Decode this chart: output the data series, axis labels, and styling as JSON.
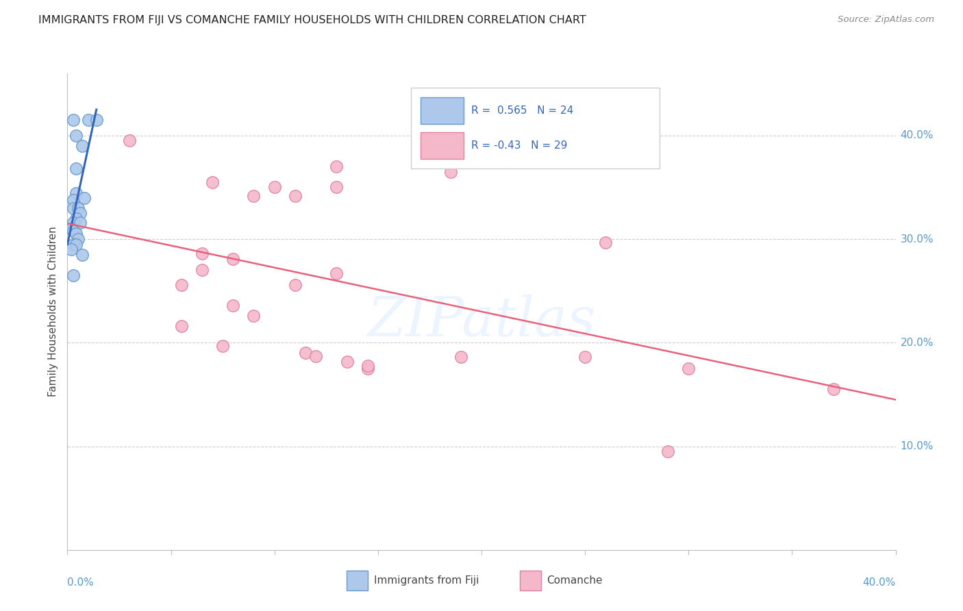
{
  "title": "IMMIGRANTS FROM FIJI VS COMANCHE FAMILY HOUSEHOLDS WITH CHILDREN CORRELATION CHART",
  "source": "Source: ZipAtlas.com",
  "ylabel": "Family Households with Children",
  "xlim": [
    0.0,
    0.4
  ],
  "ylim": [
    0.0,
    0.46
  ],
  "ytick_labels": [
    "10.0%",
    "20.0%",
    "30.0%",
    "40.0%"
  ],
  "ytick_values": [
    0.1,
    0.2,
    0.3,
    0.4
  ],
  "xtick_minor_values": [
    0.0,
    0.05,
    0.1,
    0.15,
    0.2,
    0.25,
    0.3,
    0.35,
    0.4
  ],
  "fiji_R": 0.565,
  "fiji_N": 24,
  "comanche_R": -0.43,
  "comanche_N": 29,
  "fiji_color": "#adc8ea",
  "fiji_edge_color": "#6699cc",
  "fiji_line_color": "#3366bb",
  "comanche_color": "#f5b8cb",
  "comanche_edge_color": "#e080a0",
  "comanche_line_color": "#e8607a",
  "right_axis_color": "#5599cc",
  "watermark": "ZIPatlas",
  "fiji_line_x0": 0.0,
  "fiji_line_y0": 0.295,
  "fiji_line_x1": 0.014,
  "fiji_line_y1": 0.425,
  "comanche_line_x0": 0.0,
  "comanche_line_y0": 0.315,
  "comanche_line_x1": 0.4,
  "comanche_line_y1": 0.145,
  "fiji_points": [
    [
      0.003,
      0.415
    ],
    [
      0.01,
      0.415
    ],
    [
      0.014,
      0.415
    ],
    [
      0.004,
      0.4
    ],
    [
      0.007,
      0.39
    ],
    [
      0.004,
      0.368
    ],
    [
      0.004,
      0.344
    ],
    [
      0.003,
      0.338
    ],
    [
      0.008,
      0.34
    ],
    [
      0.003,
      0.33
    ],
    [
      0.005,
      0.33
    ],
    [
      0.006,
      0.325
    ],
    [
      0.004,
      0.32
    ],
    [
      0.003,
      0.316
    ],
    [
      0.006,
      0.316
    ],
    [
      0.002,
      0.31
    ],
    [
      0.003,
      0.308
    ],
    [
      0.004,
      0.305
    ],
    [
      0.005,
      0.3
    ],
    [
      0.003,
      0.295
    ],
    [
      0.004,
      0.295
    ],
    [
      0.002,
      0.29
    ],
    [
      0.007,
      0.285
    ],
    [
      0.003,
      0.265
    ]
  ],
  "comanche_points": [
    [
      0.03,
      0.395
    ],
    [
      0.13,
      0.37
    ],
    [
      0.185,
      0.365
    ],
    [
      0.07,
      0.355
    ],
    [
      0.1,
      0.35
    ],
    [
      0.13,
      0.35
    ],
    [
      0.09,
      0.342
    ],
    [
      0.11,
      0.342
    ],
    [
      0.26,
      0.297
    ],
    [
      0.065,
      0.286
    ],
    [
      0.08,
      0.281
    ],
    [
      0.065,
      0.27
    ],
    [
      0.13,
      0.267
    ],
    [
      0.055,
      0.256
    ],
    [
      0.11,
      0.256
    ],
    [
      0.08,
      0.236
    ],
    [
      0.09,
      0.226
    ],
    [
      0.055,
      0.216
    ],
    [
      0.075,
      0.197
    ],
    [
      0.115,
      0.19
    ],
    [
      0.12,
      0.187
    ],
    [
      0.135,
      0.182
    ],
    [
      0.19,
      0.186
    ],
    [
      0.25,
      0.186
    ],
    [
      0.145,
      0.175
    ],
    [
      0.145,
      0.178
    ],
    [
      0.3,
      0.175
    ],
    [
      0.29,
      0.095
    ],
    [
      0.37,
      0.155
    ]
  ]
}
